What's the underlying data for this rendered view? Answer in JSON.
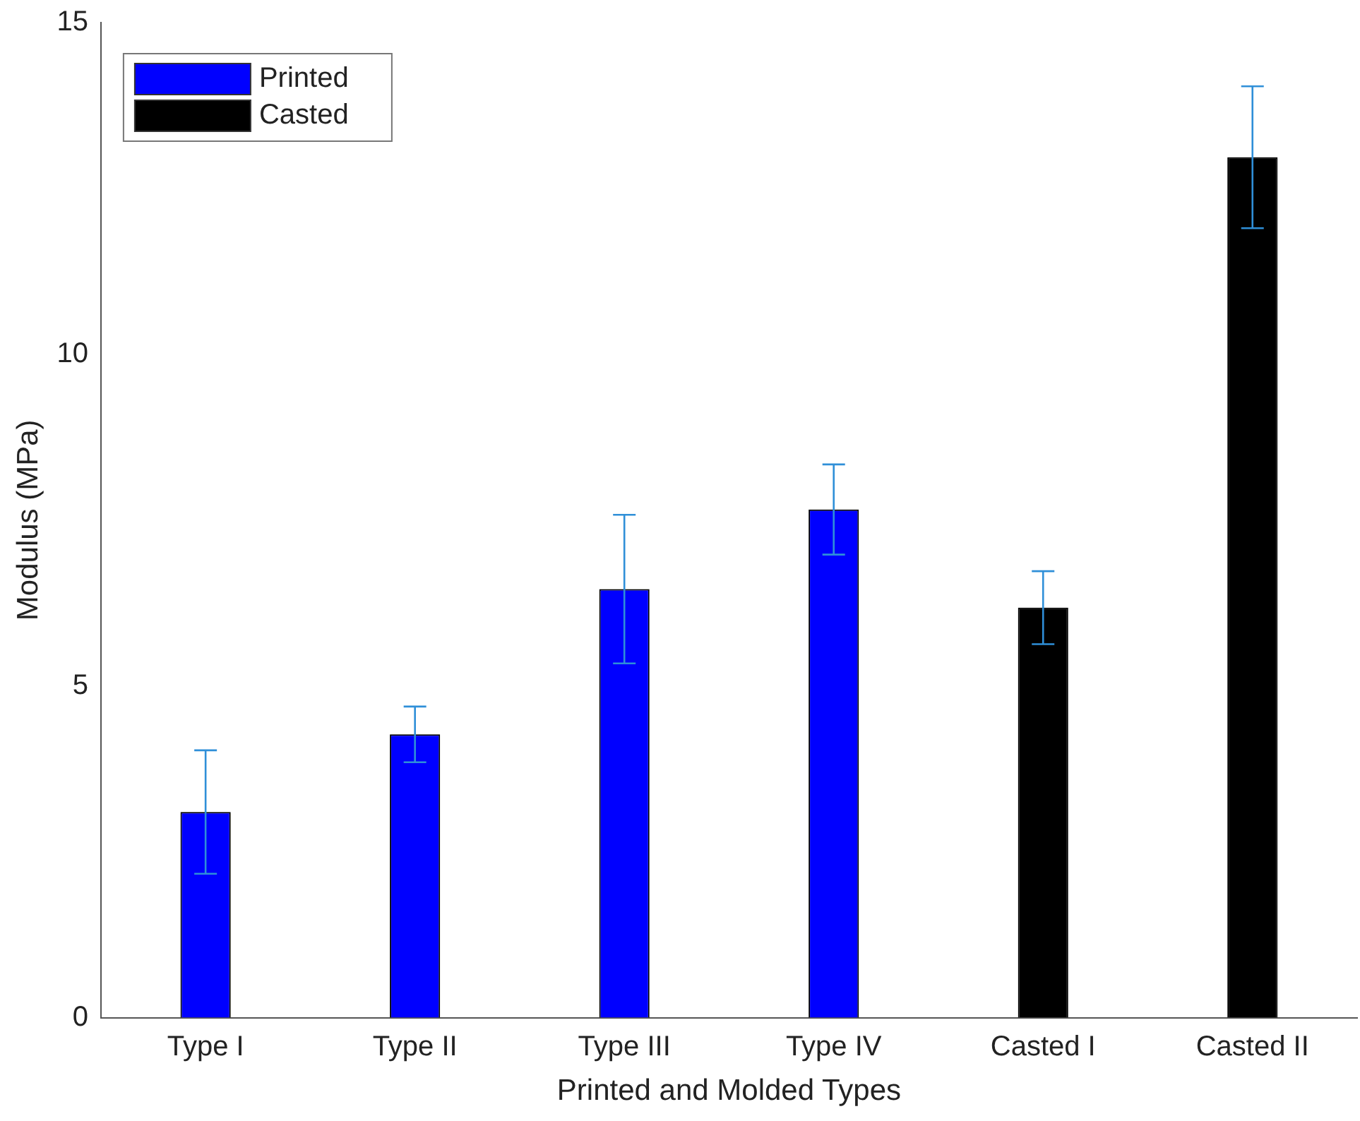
{
  "chart_data": {
    "type": "bar",
    "xlabel": "Printed and Molded Types",
    "ylabel": "Modulus (MPa)",
    "categories": [
      "Type I",
      "Type II",
      "Type III",
      "Type IV",
      "Casted I",
      "Casted II"
    ],
    "series": [
      {
        "name": "Printed",
        "color": "#0000ff",
        "values": [
          3.1,
          4.27,
          6.46,
          7.66,
          null,
          null
        ],
        "errors": [
          0.93,
          0.42,
          1.12,
          0.68,
          null,
          null
        ]
      },
      {
        "name": "Casted",
        "color": "#000000",
        "values": [
          null,
          null,
          null,
          null,
          6.18,
          12.97
        ],
        "errors": [
          null,
          null,
          null,
          null,
          0.55,
          1.07
        ]
      }
    ],
    "ylim": [
      0,
      15
    ],
    "yticks": [
      0,
      5,
      10,
      15
    ],
    "grid": false,
    "legend": "top left"
  }
}
